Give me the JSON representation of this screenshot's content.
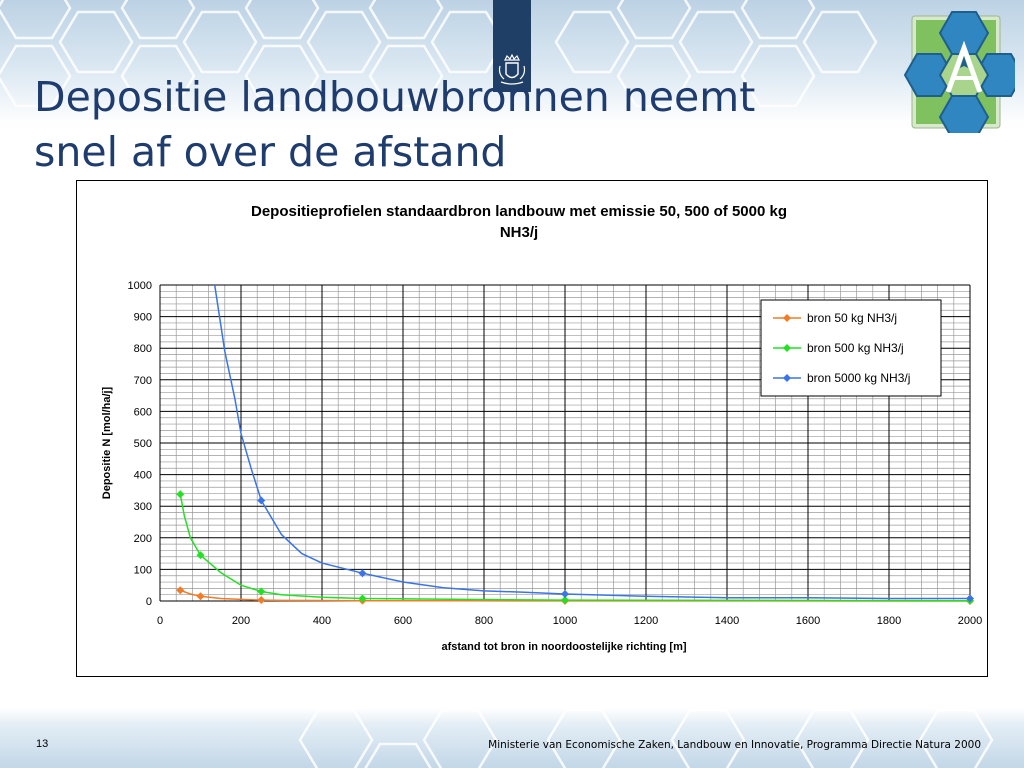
{
  "slide": {
    "title": "Depositie landbouwbronnen neemt\nsnel af over de afstand",
    "slide_number": "13",
    "footer": "Ministerie van Economische Zaken, Landbouw en Innovatie, Programma Directie Natura 2000"
  },
  "colors": {
    "title": "#1f3c6e",
    "emblem": "#1f3f66",
    "series_50": "#f07c28",
    "series_500": "#22e022",
    "series_5000": "#3b74e6"
  },
  "chart_data": {
    "type": "line",
    "title": "Depositieprofielen standaardbron landbouw met emissie 50, 500 of 5000 kg NH3/j",
    "xlabel": "afstand tot bron in noordoostelijke richting [m]",
    "ylabel": "Depositie N [mol/ha/j]",
    "xlim": [
      0,
      2000
    ],
    "ylim": [
      0,
      1000
    ],
    "x_ticks": [
      "0",
      "200",
      "400",
      "600",
      "800",
      "1000",
      "1200",
      "1400",
      "1600",
      "1800",
      "2000"
    ],
    "y_ticks": [
      "0",
      "100",
      "200",
      "300",
      "400",
      "500",
      "600",
      "700",
      "800",
      "900",
      "1000"
    ],
    "grid": true,
    "legend_position": "top-right",
    "series": [
      {
        "name": "bron 50 kg NH3/j",
        "color": "#f07c28",
        "points": [
          [
            50,
            34
          ],
          [
            75,
            22
          ],
          [
            100,
            15
          ],
          [
            150,
            8
          ],
          [
            200,
            5
          ],
          [
            250,
            3
          ],
          [
            300,
            2
          ],
          [
            400,
            1.5
          ],
          [
            500,
            1
          ],
          [
            750,
            0.6
          ],
          [
            1000,
            0.4
          ],
          [
            1500,
            0.2
          ],
          [
            2000,
            0.1
          ]
        ],
        "markers": [
          [
            50,
            34
          ],
          [
            100,
            15
          ],
          [
            250,
            3
          ],
          [
            500,
            1
          ],
          [
            1000,
            0.4
          ],
          [
            2000,
            0.1
          ]
        ]
      },
      {
        "name": "bron 500 kg NH3/j",
        "color": "#22e022",
        "points": [
          [
            50,
            338
          ],
          [
            60,
            270
          ],
          [
            75,
            200
          ],
          [
            100,
            145
          ],
          [
            150,
            90
          ],
          [
            200,
            50
          ],
          [
            250,
            30
          ],
          [
            300,
            20
          ],
          [
            400,
            12
          ],
          [
            500,
            8
          ],
          [
            750,
            5
          ],
          [
            1000,
            3
          ],
          [
            1500,
            2
          ],
          [
            2000,
            1
          ]
        ],
        "markers": [
          [
            50,
            338
          ],
          [
            100,
            145
          ],
          [
            250,
            30
          ],
          [
            500,
            8
          ],
          [
            1000,
            3
          ],
          [
            2000,
            1
          ]
        ]
      },
      {
        "name": "bron 5000 kg NH3/j",
        "color": "#3b74e6",
        "points": [
          [
            135,
            1000
          ],
          [
            160,
            790
          ],
          [
            185,
            640
          ],
          [
            200,
            530
          ],
          [
            225,
            420
          ],
          [
            250,
            318
          ],
          [
            300,
            210
          ],
          [
            350,
            150
          ],
          [
            400,
            120
          ],
          [
            500,
            88
          ],
          [
            600,
            60
          ],
          [
            700,
            42
          ],
          [
            800,
            32
          ],
          [
            900,
            28
          ],
          [
            1000,
            22
          ],
          [
            1200,
            15
          ],
          [
            1400,
            10
          ],
          [
            1600,
            10
          ],
          [
            1800,
            8
          ],
          [
            2000,
            8
          ]
        ],
        "markers": [
          [
            250,
            318
          ],
          [
            500,
            88
          ],
          [
            1000,
            22
          ],
          [
            2000,
            8
          ]
        ]
      }
    ]
  }
}
